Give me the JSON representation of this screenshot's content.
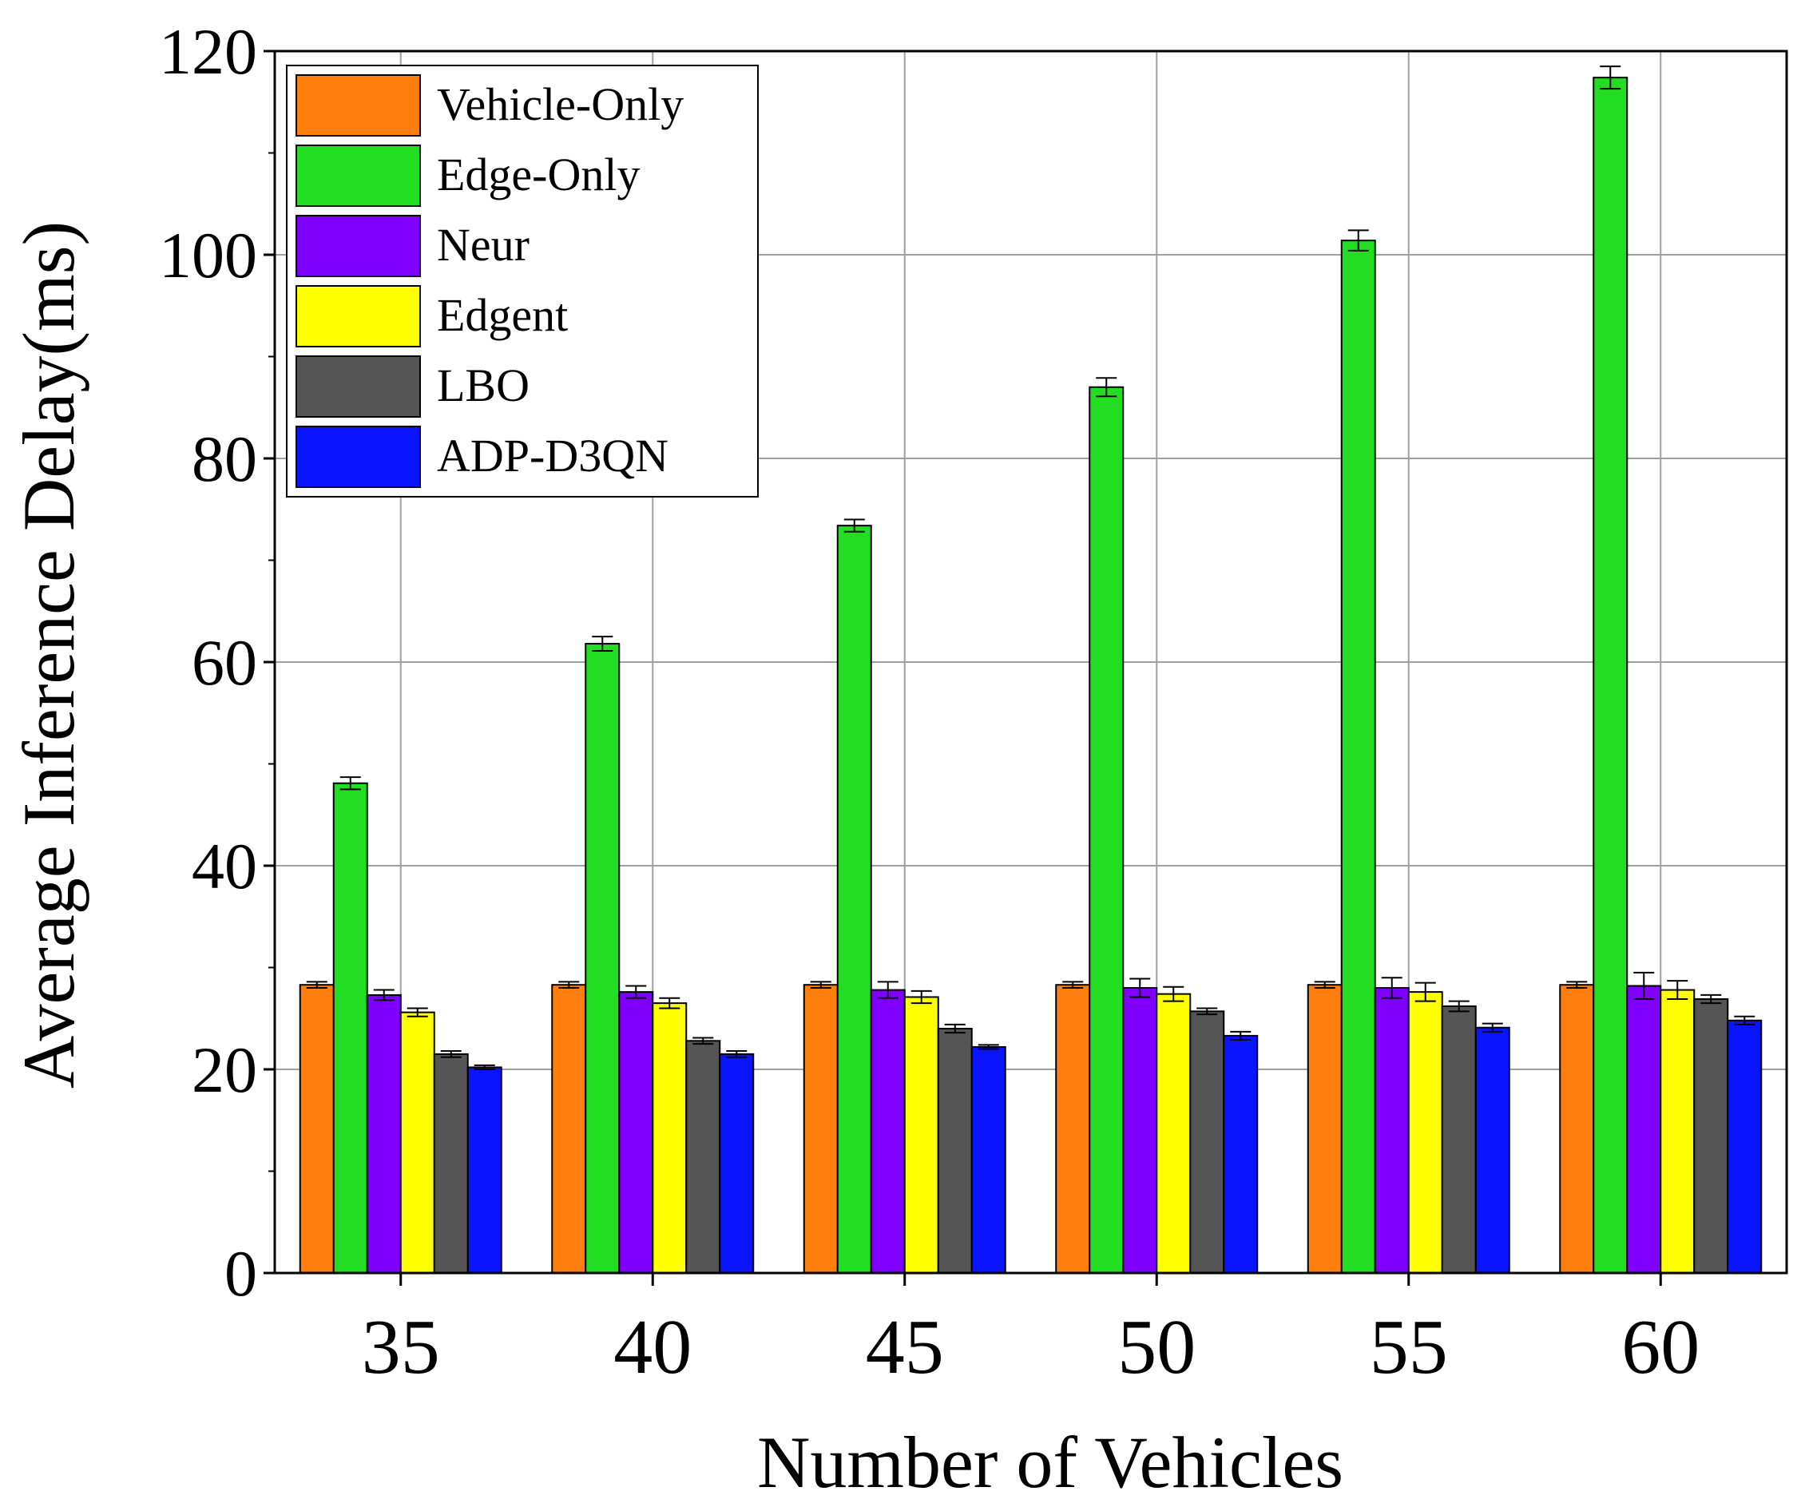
{
  "chart_data": {
    "type": "bar",
    "title": "",
    "xlabel": "Number of Vehicles",
    "ylabel": "Average Inference Delay(ms)",
    "ylim": [
      0,
      120
    ],
    "yticks": [
      0,
      20,
      40,
      60,
      80,
      100,
      120
    ],
    "ytick_labels": [
      "0",
      "20",
      "40",
      "60",
      "80",
      "100",
      "120"
    ],
    "categories": [
      "35",
      "40",
      "45",
      "50",
      "55",
      "60"
    ],
    "grid": true,
    "legend_position": "top-left",
    "series": [
      {
        "name": "Vehicle-Only",
        "color": "#FF7F0E",
        "values": [
          28.3,
          28.3,
          28.3,
          28.3,
          28.3,
          28.3
        ],
        "errors": [
          0.3,
          0.3,
          0.3,
          0.3,
          0.3,
          0.3
        ]
      },
      {
        "name": "Edge-Only",
        "color": "#22DD22",
        "values": [
          48.1,
          61.8,
          73.4,
          87.0,
          101.4,
          117.4
        ],
        "errors": [
          0.6,
          0.7,
          0.6,
          0.9,
          1.0,
          1.1
        ]
      },
      {
        "name": "Neur",
        "color": "#7F00FF",
        "values": [
          27.3,
          27.6,
          27.8,
          28.0,
          28.0,
          28.2
        ],
        "errors": [
          0.5,
          0.6,
          0.8,
          0.9,
          1.0,
          1.3
        ]
      },
      {
        "name": "Edgent",
        "color": "#FFFF00",
        "values": [
          25.6,
          26.5,
          27.1,
          27.4,
          27.6,
          27.8
        ],
        "errors": [
          0.4,
          0.5,
          0.6,
          0.7,
          0.9,
          0.9
        ]
      },
      {
        "name": "LBO",
        "color": "#555555",
        "values": [
          21.5,
          22.8,
          24.0,
          25.7,
          26.2,
          26.9
        ],
        "errors": [
          0.3,
          0.3,
          0.4,
          0.3,
          0.5,
          0.4
        ]
      },
      {
        "name": "ADP-D3QN",
        "color": "#0A14FF",
        "values": [
          20.2,
          21.5,
          22.2,
          23.3,
          24.1,
          24.8
        ],
        "errors": [
          0.2,
          0.3,
          0.2,
          0.4,
          0.4,
          0.4
        ]
      }
    ]
  }
}
